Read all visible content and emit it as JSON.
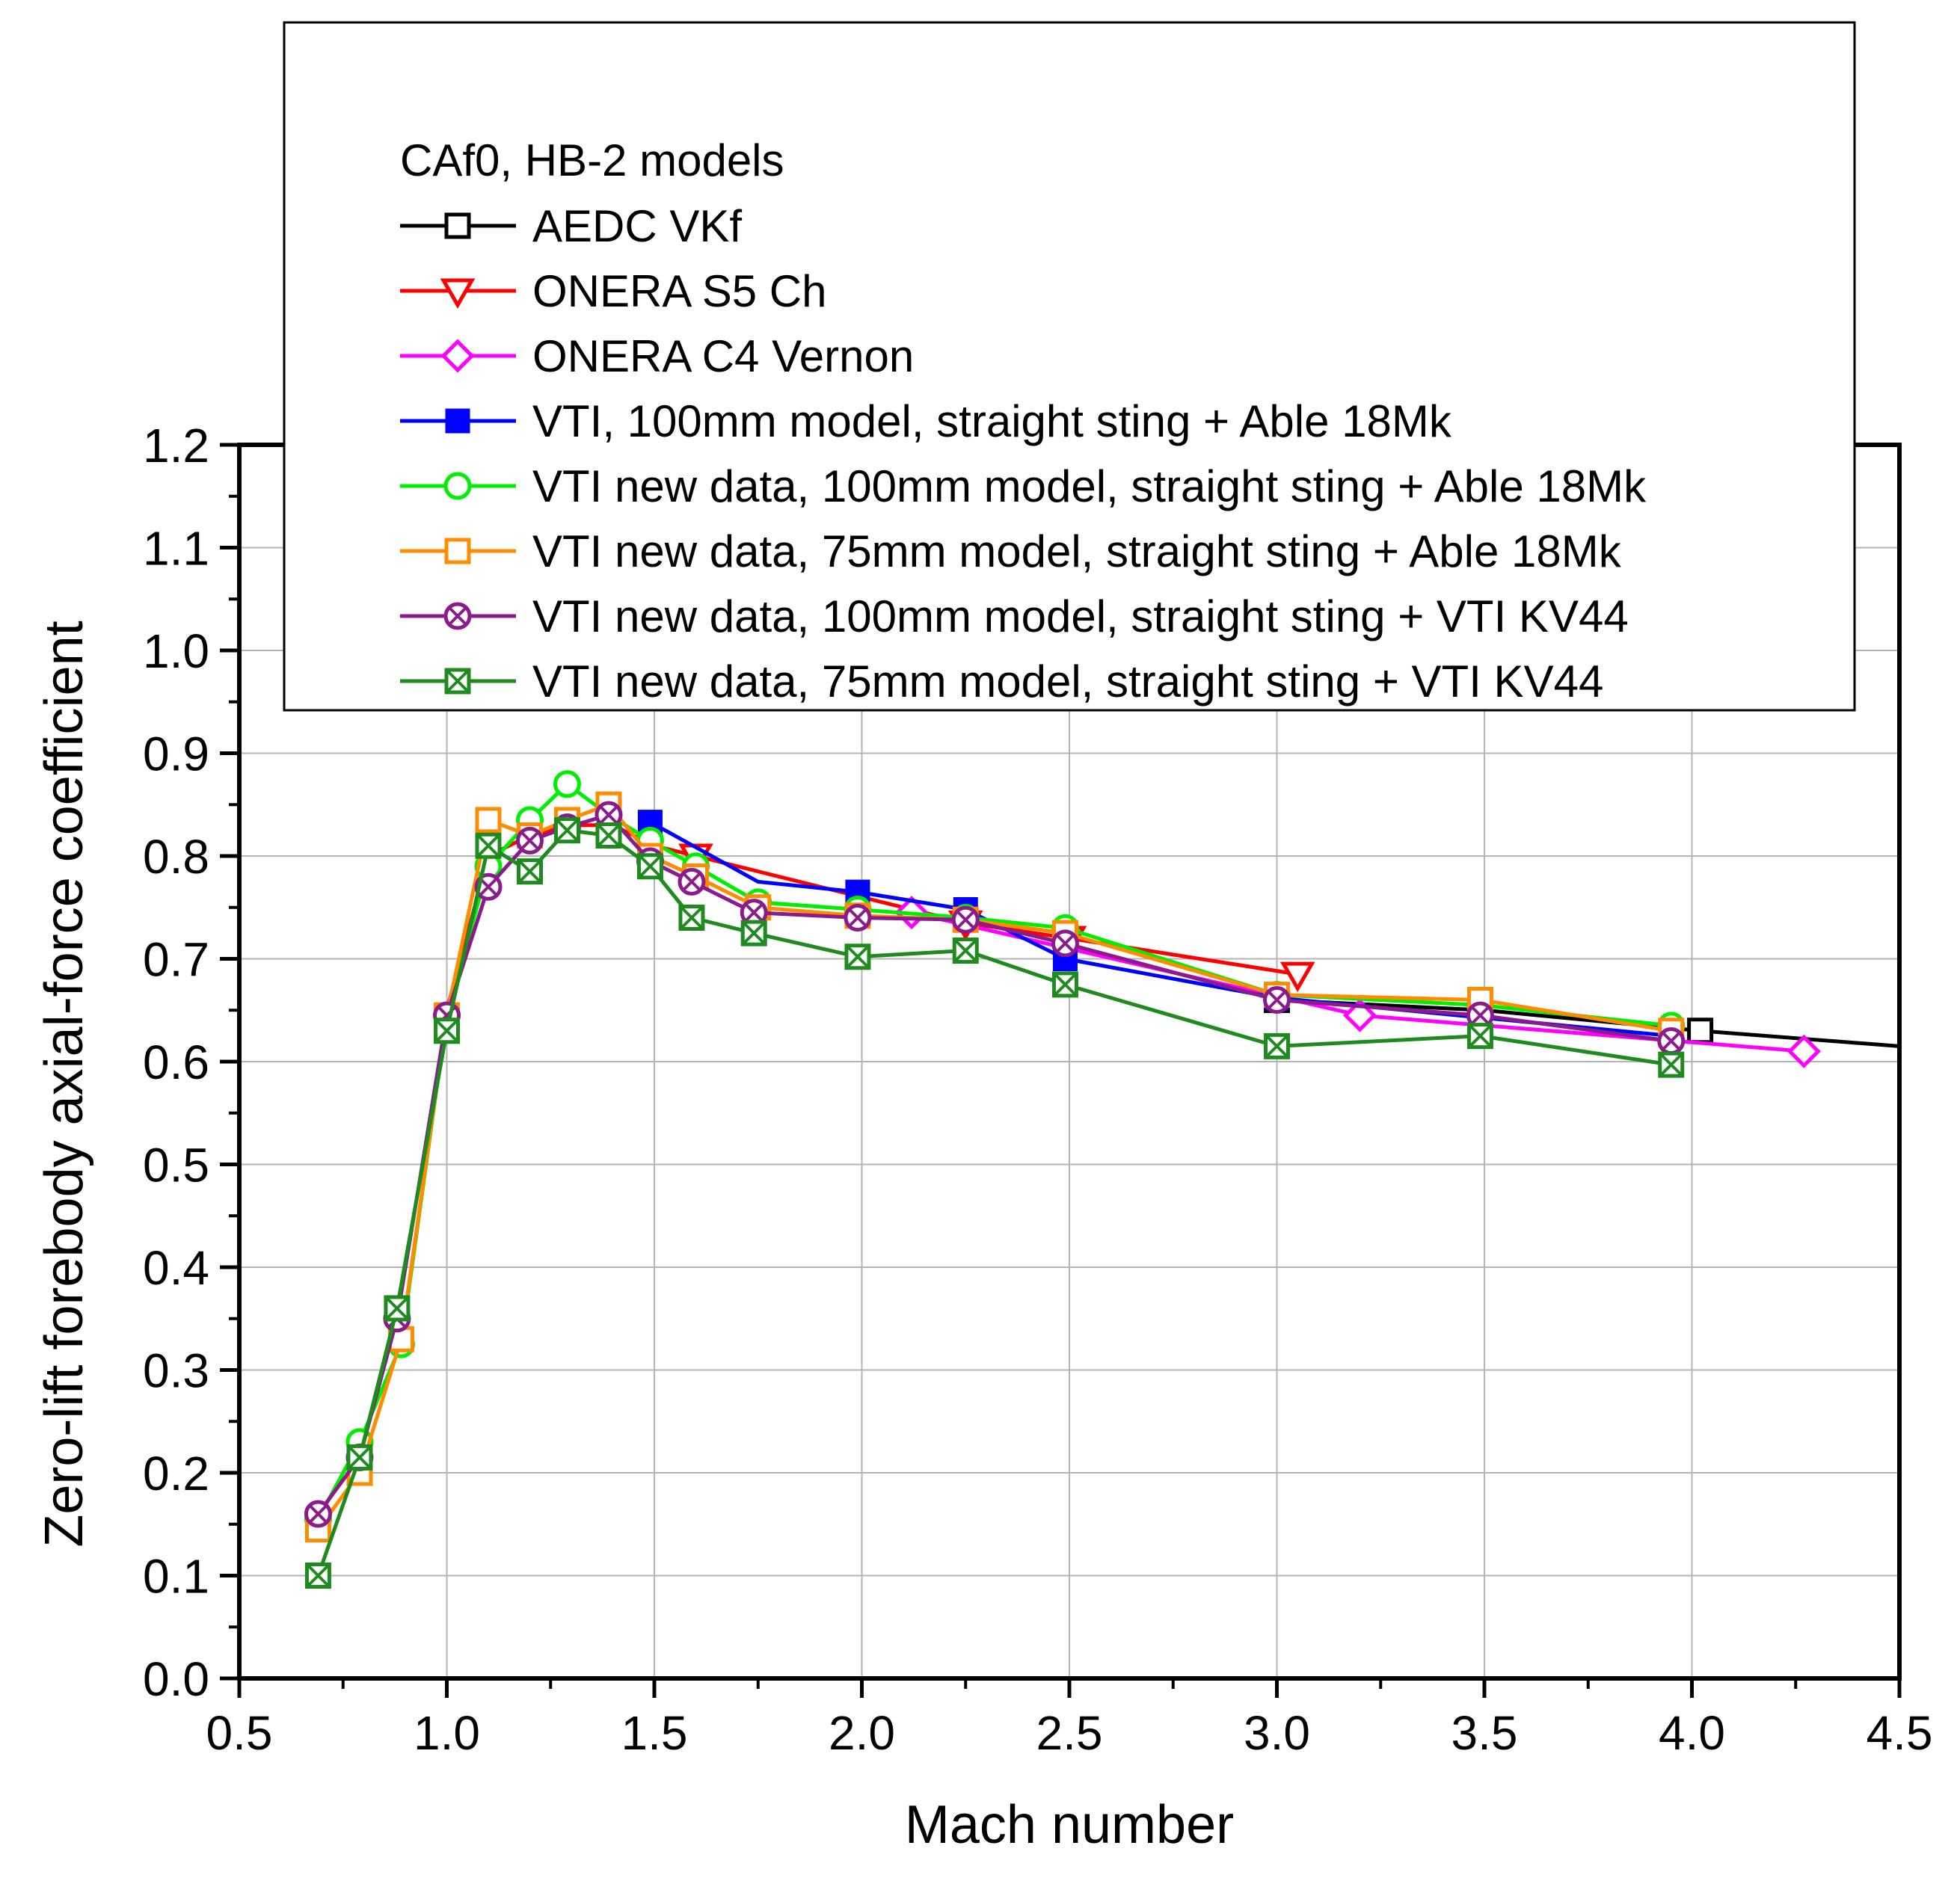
{
  "chart_data": {
    "type": "line",
    "title": "",
    "xlabel": "Mach number",
    "ylabel": "Zero-lift forebody axial-force coefficient",
    "xlim": [
      0.5,
      4.5
    ],
    "ylim": [
      0.0,
      1.2
    ],
    "xticks": [
      "0.5",
      "1.0",
      "1.5",
      "2.0",
      "2.5",
      "3.0",
      "3.5",
      "4.0",
      "4.5"
    ],
    "yticks": [
      "0.0",
      "0.1",
      "0.2",
      "0.3",
      "0.4",
      "0.5",
      "0.6",
      "0.7",
      "0.8",
      "0.9",
      "1.0",
      "1.1",
      "1.2"
    ],
    "grid": true,
    "legend_title": "CAf0, HB-2 models",
    "legend_position": "top",
    "series": [
      {
        "name": "AEDC VKf",
        "color": "#000000",
        "marker": "square-open",
        "x": [
          3.0,
          3.5,
          4.02,
          4.5
        ],
        "y": [
          0.66,
          0.65,
          0.63,
          0.615
        ],
        "marker_x": [
          3.0,
          4.02
        ],
        "marker_y": [
          0.66,
          0.63
        ]
      },
      {
        "name": "ONERA S5 Ch",
        "color": "#ff0000",
        "marker": "triangle-down-open",
        "x": [
          1.0,
          1.1,
          1.2,
          1.3,
          1.4,
          1.5,
          1.6,
          1.75,
          2.0,
          2.25,
          2.5,
          3.05
        ],
        "y": [
          0.65,
          0.8,
          0.82,
          0.83,
          0.83,
          0.81,
          0.8,
          0.785,
          0.76,
          0.735,
          0.72,
          0.685
        ],
        "marker_x": [
          1.6,
          2.25,
          2.5,
          3.05
        ],
        "marker_y": [
          0.8,
          0.735,
          0.72,
          0.685
        ]
      },
      {
        "name": "ONERA C4 Vernon",
        "color": "#ff00ff",
        "marker": "diamond-open",
        "x": [
          2.12,
          3.2,
          4.27
        ],
        "y": [
          0.745,
          0.645,
          0.61
        ],
        "marker_x": [
          2.12,
          3.2,
          4.27
        ],
        "marker_y": [
          0.745,
          0.645,
          0.61
        ]
      },
      {
        "name": "VTI, 100mm model, straight sting + Able 18Mk",
        "color": "#0000ff",
        "marker": "square-filled",
        "x": [
          1.49,
          1.75,
          1.99,
          2.25,
          2.49,
          3.0,
          3.95
        ],
        "y": [
          0.833,
          0.775,
          0.765,
          0.748,
          0.7,
          0.662,
          0.625
        ],
        "marker_x": [
          1.49,
          1.99,
          2.25,
          2.49,
          3.0
        ],
        "marker_y": [
          0.833,
          0.765,
          0.748,
          0.7,
          0.662
        ]
      },
      {
        "name": "VTI new data, 100mm model, straight sting + Able 18Mk",
        "color": "#00ee00",
        "marker": "circle-open",
        "x": [
          0.69,
          0.79,
          0.89,
          1.0,
          1.1,
          1.2,
          1.29,
          1.39,
          1.49,
          1.6,
          1.75,
          1.99,
          2.25,
          2.49,
          3.0,
          3.49,
          3.95
        ],
        "y": [
          0.155,
          0.23,
          0.325,
          0.645,
          0.79,
          0.835,
          0.87,
          0.84,
          0.815,
          0.79,
          0.755,
          0.748,
          0.74,
          0.73,
          0.665,
          0.655,
          0.635
        ],
        "marker_x": [
          0.69,
          0.79,
          0.89,
          1.0,
          1.1,
          1.2,
          1.29,
          1.39,
          1.49,
          1.6,
          1.75,
          1.99,
          2.25,
          2.49,
          3.0,
          3.49,
          3.95
        ],
        "marker_y": [
          0.155,
          0.23,
          0.325,
          0.645,
          0.79,
          0.835,
          0.87,
          0.84,
          0.815,
          0.79,
          0.755,
          0.748,
          0.74,
          0.73,
          0.665,
          0.655,
          0.635
        ]
      },
      {
        "name": "VTI new data, 75mm model, straight sting + Able 18Mk",
        "color": "#ff8c00",
        "marker": "square-open",
        "x": [
          0.69,
          0.79,
          0.89,
          1.0,
          1.1,
          1.2,
          1.29,
          1.39,
          1.49,
          1.6,
          1.75,
          1.99,
          2.25,
          2.49,
          3.0,
          3.49,
          3.95
        ],
        "y": [
          0.145,
          0.2,
          0.33,
          0.645,
          0.835,
          0.82,
          0.835,
          0.85,
          0.8,
          0.78,
          0.75,
          0.742,
          0.738,
          0.725,
          0.665,
          0.66,
          0.63
        ],
        "marker_x": [
          0.69,
          0.79,
          0.89,
          1.0,
          1.1,
          1.2,
          1.29,
          1.39,
          1.49,
          1.6,
          1.75,
          1.99,
          2.25,
          2.49,
          3.0,
          3.49,
          3.95
        ],
        "marker_y": [
          0.145,
          0.2,
          0.33,
          0.645,
          0.835,
          0.82,
          0.835,
          0.85,
          0.8,
          0.78,
          0.75,
          0.742,
          0.738,
          0.725,
          0.665,
          0.66,
          0.63
        ]
      },
      {
        "name": "VTI new data, 100mm model, straight sting + VTI KV44",
        "color": "#8b1a8b",
        "marker": "circle-x",
        "x": [
          0.69,
          0.79,
          0.88,
          1.0,
          1.1,
          1.2,
          1.29,
          1.39,
          1.49,
          1.59,
          1.74,
          1.99,
          2.25,
          2.49,
          3.0,
          3.49,
          3.95
        ],
        "y": [
          0.16,
          0.215,
          0.35,
          0.645,
          0.77,
          0.815,
          0.828,
          0.84,
          0.795,
          0.775,
          0.745,
          0.74,
          0.738,
          0.715,
          0.66,
          0.645,
          0.62
        ],
        "marker_x": [
          0.69,
          0.79,
          0.88,
          1.0,
          1.1,
          1.2,
          1.29,
          1.39,
          1.49,
          1.59,
          1.74,
          1.99,
          2.25,
          2.49,
          3.0,
          3.49,
          3.95
        ],
        "marker_y": [
          0.16,
          0.215,
          0.35,
          0.645,
          0.77,
          0.815,
          0.828,
          0.84,
          0.795,
          0.775,
          0.745,
          0.74,
          0.738,
          0.715,
          0.66,
          0.645,
          0.62
        ]
      },
      {
        "name": "VTI new data, 75mm model, straight sting + VTI KV44",
        "color": "#1f8b1f",
        "marker": "square-x",
        "x": [
          0.69,
          0.79,
          0.88,
          1.0,
          1.1,
          1.2,
          1.29,
          1.39,
          1.49,
          1.59,
          1.74,
          1.99,
          2.25,
          2.49,
          3.0,
          3.49,
          3.95
        ],
        "y": [
          0.1,
          0.215,
          0.36,
          0.63,
          0.81,
          0.785,
          0.825,
          0.82,
          0.79,
          0.74,
          0.725,
          0.702,
          0.708,
          0.675,
          0.615,
          0.625,
          0.597
        ],
        "marker_x": [
          0.69,
          0.79,
          0.88,
          1.0,
          1.1,
          1.2,
          1.29,
          1.39,
          1.49,
          1.59,
          1.74,
          1.99,
          2.25,
          2.49,
          3.0,
          3.49,
          3.95
        ],
        "marker_y": [
          0.1,
          0.215,
          0.36,
          0.63,
          0.81,
          0.785,
          0.825,
          0.82,
          0.79,
          0.74,
          0.725,
          0.702,
          0.708,
          0.675,
          0.615,
          0.625,
          0.597
        ]
      }
    ]
  }
}
